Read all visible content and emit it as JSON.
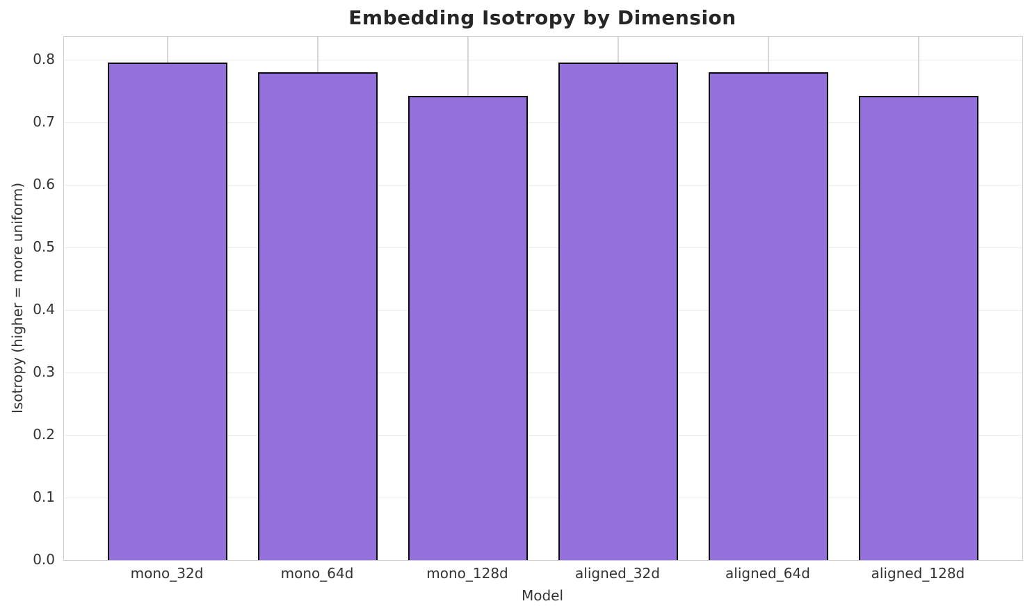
{
  "chart_data": {
    "type": "bar",
    "title": "Embedding Isotropy by Dimension",
    "xlabel": "Model",
    "ylabel": "Isotropy (higher = more uniform)",
    "categories": [
      "mono_32d",
      "mono_64d",
      "mono_128d",
      "aligned_32d",
      "aligned_64d",
      "aligned_128d"
    ],
    "values": [
      0.796,
      0.78,
      0.742,
      0.796,
      0.78,
      0.742
    ],
    "series": [
      {
        "name": "Isotropy",
        "values": [
          0.796,
          0.78,
          0.742,
          0.796,
          0.78,
          0.742
        ]
      }
    ],
    "yticks": [
      0.0,
      0.1,
      0.2,
      0.3,
      0.4,
      0.5,
      0.6,
      0.7,
      0.8
    ],
    "ytick_labels": [
      "0.0",
      "0.1",
      "0.2",
      "0.3",
      "0.4",
      "0.5",
      "0.6",
      "0.7",
      "0.8"
    ],
    "ylim": [
      0,
      0.8367
    ],
    "xlim": [
      -0.69,
      5.69
    ],
    "bar_width": 0.8,
    "grid": true,
    "legend": "none",
    "bar_color": "#9370db",
    "bar_edge_color": "#0a0a0a"
  },
  "colors": {
    "background": "#ffffff",
    "horizontal_grid": "#ededed",
    "vertical_grid": "#d6d6d6",
    "spine": "#cfcfcf",
    "text": "#333333",
    "title_text": "#262626"
  }
}
